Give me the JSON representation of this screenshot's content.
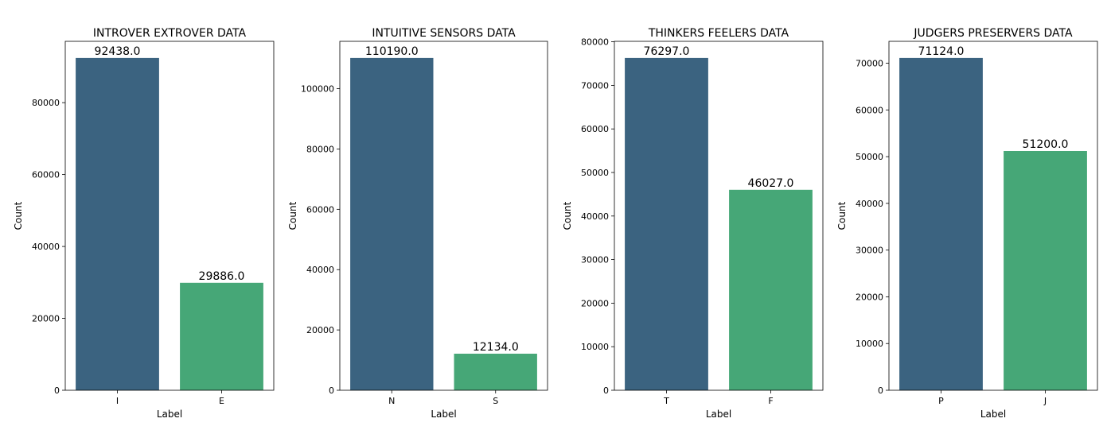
{
  "chart_data": [
    {
      "type": "bar",
      "title": "INTROVER EXTROVER DATA",
      "xlabel": "Label",
      "ylabel": "Count",
      "categories": [
        "I",
        "E"
      ],
      "values": [
        92438.0,
        29886.0
      ],
      "value_labels": [
        "92438.0",
        "29886.0"
      ],
      "ylim": [
        0,
        97060
      ],
      "yticks": [
        0,
        20000,
        40000,
        60000,
        80000
      ],
      "colors": [
        "#3b6380",
        "#46a777"
      ]
    },
    {
      "type": "bar",
      "title": "INTUITIVE SENSORS DATA",
      "xlabel": "Label",
      "ylabel": "Count",
      "categories": [
        "N",
        "S"
      ],
      "values": [
        110190.0,
        12134.0
      ],
      "value_labels": [
        "110190.0",
        "12134.0"
      ],
      "ylim": [
        0,
        115700
      ],
      "yticks": [
        0,
        20000,
        40000,
        60000,
        80000,
        100000
      ],
      "colors": [
        "#3b6380",
        "#46a777"
      ]
    },
    {
      "type": "bar",
      "title": "THINKERS FEELERS DATA",
      "xlabel": "Label",
      "ylabel": "Count",
      "categories": [
        "T",
        "F"
      ],
      "values": [
        76297.0,
        46027.0
      ],
      "value_labels": [
        "76297.0",
        "46027.0"
      ],
      "ylim": [
        0,
        80110
      ],
      "yticks": [
        0,
        10000,
        20000,
        30000,
        40000,
        50000,
        60000,
        70000,
        80000
      ],
      "colors": [
        "#3b6380",
        "#46a777"
      ]
    },
    {
      "type": "bar",
      "title": "JUDGERS PRESERVERS DATA",
      "xlabel": "Label",
      "ylabel": "Count",
      "categories": [
        "P",
        "J"
      ],
      "values": [
        71124.0,
        51200.0
      ],
      "value_labels": [
        "71124.0",
        "51200.0"
      ],
      "ylim": [
        0,
        74680
      ],
      "yticks": [
        0,
        10000,
        20000,
        30000,
        40000,
        50000,
        60000,
        70000
      ],
      "colors": [
        "#3b6380",
        "#46a777"
      ]
    }
  ]
}
